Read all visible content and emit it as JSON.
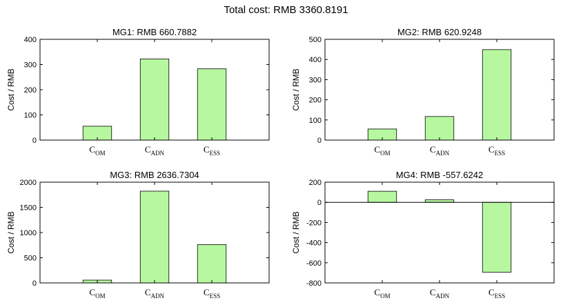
{
  "suptitle": "Total cost: RMB 3360.8191",
  "bar_color": "#b7f7a0",
  "chart_data": [
    {
      "type": "bar",
      "title": "MG1: RMB 660.7882",
      "ylabel": "Cost / RMB",
      "categories": [
        {
          "main": "C",
          "sub": "OM"
        },
        {
          "main": "C",
          "sub": "ADN"
        },
        {
          "main": "C",
          "sub": "ESS"
        }
      ],
      "values": [
        55,
        322,
        283
      ],
      "ylim": [
        0,
        400
      ],
      "yticks": [
        0,
        100,
        200,
        300,
        400
      ],
      "grid": false,
      "zero_line": false
    },
    {
      "type": "bar",
      "title": "MG2: RMB 620.9248",
      "ylabel": "Cost / RMB",
      "categories": [
        {
          "main": "C",
          "sub": "OM"
        },
        {
          "main": "C",
          "sub": "ADN"
        },
        {
          "main": "C",
          "sub": "ESS"
        }
      ],
      "values": [
        55,
        117,
        449
      ],
      "ylim": [
        0,
        500
      ],
      "yticks": [
        0,
        100,
        200,
        300,
        400,
        500
      ],
      "grid": false,
      "zero_line": false
    },
    {
      "type": "bar",
      "title": "MG3: RMB 2636.7304",
      "ylabel": "Cost / RMB",
      "categories": [
        {
          "main": "C",
          "sub": "OM"
        },
        {
          "main": "C",
          "sub": "ADN"
        },
        {
          "main": "C",
          "sub": "ESS"
        }
      ],
      "values": [
        55,
        1822,
        760
      ],
      "ylim": [
        0,
        2000
      ],
      "yticks": [
        0,
        500,
        1000,
        1500,
        2000
      ],
      "grid": false,
      "zero_line": false
    },
    {
      "type": "bar",
      "title": "MG4: RMB -557.6242",
      "ylabel": "Cost / RMB",
      "categories": [
        {
          "main": "C",
          "sub": "OM"
        },
        {
          "main": "C",
          "sub": "ADN"
        },
        {
          "main": "C",
          "sub": "ESS"
        }
      ],
      "values": [
        110,
        25,
        -693
      ],
      "ylim": [
        -800,
        200
      ],
      "yticks": [
        -800,
        -600,
        -400,
        -200,
        0,
        200
      ],
      "grid": false,
      "zero_line": true
    }
  ]
}
